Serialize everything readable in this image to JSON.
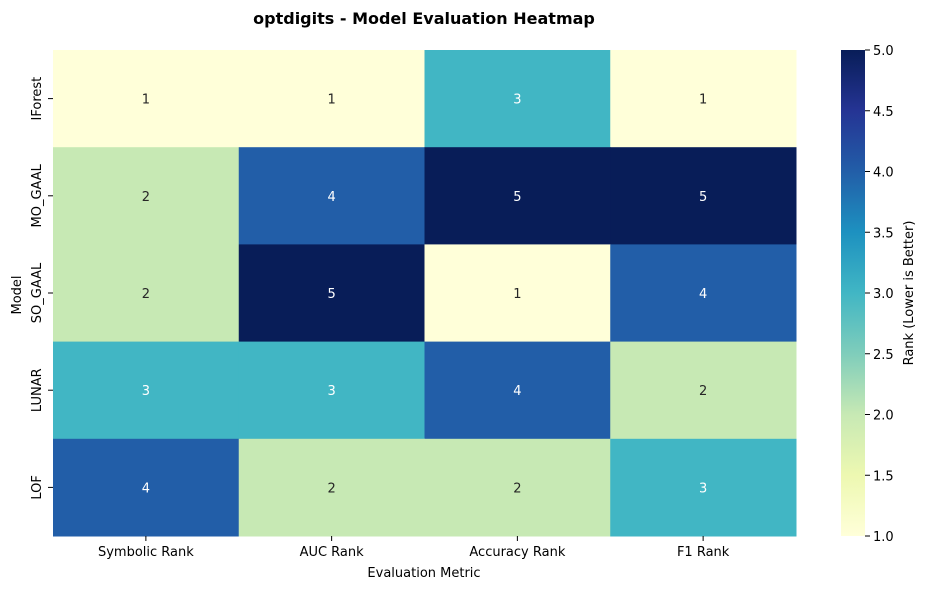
{
  "chart_data": {
    "type": "heatmap",
    "title": "optdigits - Model Evaluation Heatmap",
    "xlabel": "Evaluation Metric",
    "ylabel": "Model",
    "x_categories": [
      "Symbolic Rank",
      "AUC Rank",
      "Accuracy Rank",
      "F1 Rank"
    ],
    "y_categories": [
      "IForest",
      "MO_GAAL",
      "SO_GAAL",
      "LUNAR",
      "LOF"
    ],
    "values": [
      [
        1,
        1,
        3,
        1
      ],
      [
        2,
        4,
        5,
        5
      ],
      [
        2,
        5,
        1,
        4
      ],
      [
        3,
        3,
        4,
        2
      ],
      [
        4,
        2,
        2,
        3
      ]
    ],
    "colorbar": {
      "label": "Rank (Lower is Better)",
      "range": [
        1.0,
        5.0
      ],
      "ticks": [
        "1.0",
        "1.5",
        "2.0",
        "2.5",
        "3.0",
        "3.5",
        "4.0",
        "4.5",
        "5.0"
      ],
      "colormap": "YlGnBu"
    },
    "colors": {
      "1": "#ffffd9",
      "2": "#c7e9b4",
      "3": "#41b6c4",
      "4": "#225ea8",
      "5": "#081d58"
    }
  }
}
